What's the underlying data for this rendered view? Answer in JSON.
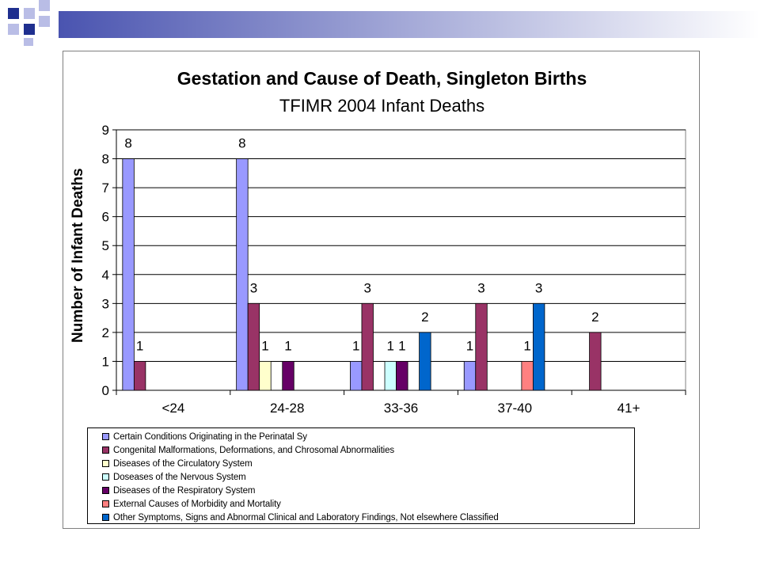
{
  "colors": {
    "deco_dark": "#1f2f8f",
    "deco_light": "#b9bde6",
    "grid": "#000000",
    "plot_bg": "#ffffff"
  },
  "chart_data": {
    "type": "bar",
    "title": "Gestation and Cause of Death, Singleton Births",
    "subtitle": "TFIMR 2004 Infant Deaths",
    "xlabel": "",
    "ylabel": "Number of Infant Deaths",
    "ylim": [
      0,
      9
    ],
    "yticks": [
      "0",
      "1",
      "2",
      "3",
      "4",
      "5",
      "6",
      "7",
      "8",
      "9"
    ],
    "grid": true,
    "legend_position": "bottom",
    "categories": [
      "<24",
      "24-28",
      "33-36",
      "37-40",
      "41+"
    ],
    "series": [
      {
        "name": "Certain Conditions Originating in the Perinatal Sy",
        "color": "#9999ff",
        "values": [
          8,
          8,
          1,
          1,
          0
        ]
      },
      {
        "name": "Congenital Malformations, Deformations, and Chrosomal Abnormalities",
        "color": "#993366",
        "values": [
          1,
          3,
          3,
          3,
          2
        ]
      },
      {
        "name": "Diseases of the Circulatory System",
        "color": "#ffffcc",
        "values": [
          0,
          1,
          0,
          0,
          0
        ]
      },
      {
        "name": "Doseases of the Nervous System",
        "color": "#ccffff",
        "values": [
          0,
          0,
          1,
          0,
          0
        ]
      },
      {
        "name": "Diseases of the Respiratory System",
        "color": "#660066",
        "values": [
          0,
          1,
          1,
          0,
          0
        ]
      },
      {
        "name": "External Causes of Morbidity and Mortality",
        "color": "#ff8080",
        "values": [
          0,
          0,
          0,
          1,
          0
        ]
      },
      {
        "name": "Other Symptoms, Signs and Abnormal Clinical and Laboratory Findings, Not elsewhere Classified",
        "color": "#0066cc",
        "values": [
          0,
          0,
          2,
          3,
          0
        ]
      }
    ]
  }
}
